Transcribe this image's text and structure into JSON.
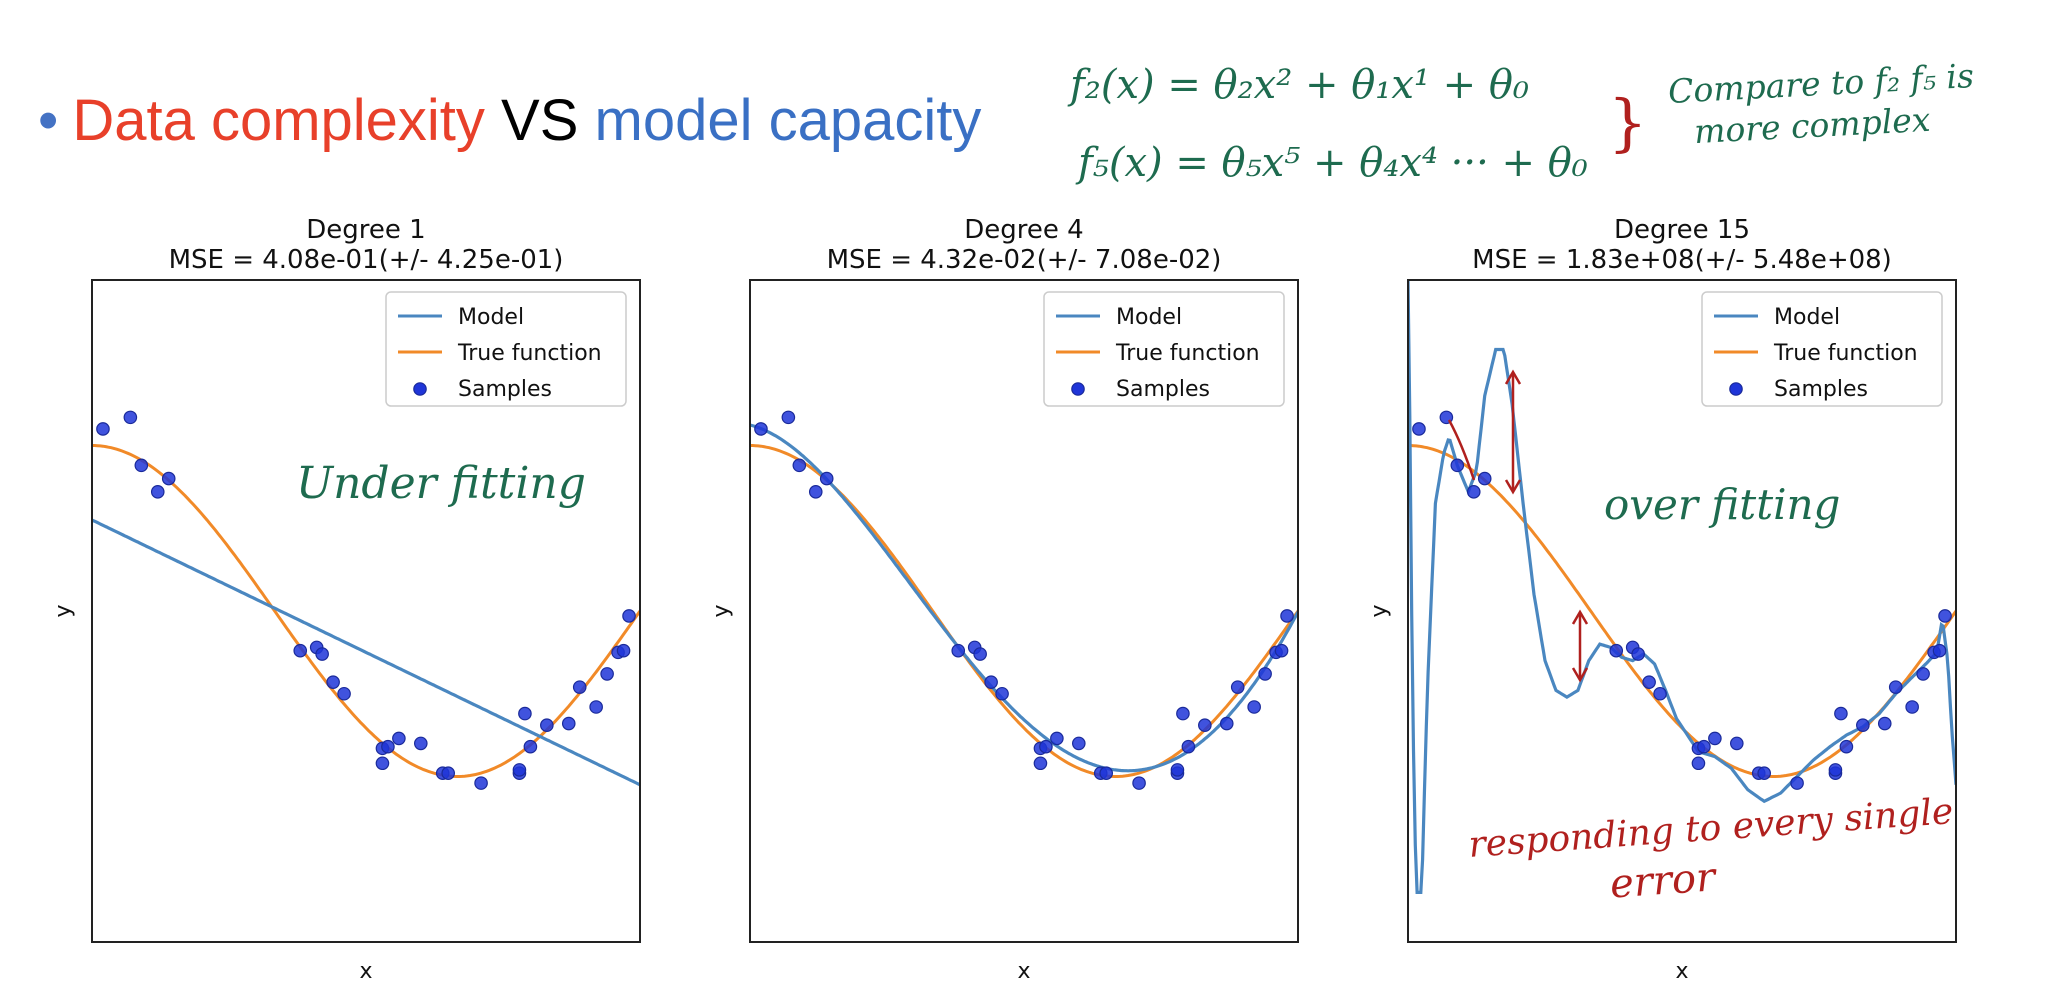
{
  "slide": {
    "bullet": "•",
    "heading_part1": "Data complexity",
    "heading_part2": " VS ",
    "heading_part3": "model capacity",
    "colors": {
      "red": "#e8402a",
      "blue": "#3a70c4",
      "ink_green": "#1e6b4f",
      "ink_red": "#b0201e"
    }
  },
  "annotations": {
    "eq1": "f₂(x) = θ₂x² + θ₁x¹ + θ₀",
    "eq2": "f₅(x) = θ₅x⁵ + θ₄x⁴ ··· + θ₀",
    "brace": "}",
    "note_line1": "Compare to f₂  f₅ is",
    "note_line2": "more complex",
    "underfitting": "Under fitting",
    "overfitting": "over fitting",
    "error_line1": "responding to every single",
    "error_line2": "error"
  },
  "chart_data": [
    {
      "type": "scatter+line",
      "title": "Degree 1",
      "subtitle": "MSE = 4.08e-01(+/- 4.25e-01)",
      "xlabel": "x",
      "ylabel": "y",
      "xlim": [
        0,
        1
      ],
      "ylim": [
        -2,
        2
      ],
      "legend": {
        "position": "top-right",
        "entries": [
          "Model",
          "True function",
          "Samples"
        ]
      },
      "colors": {
        "model": "#4a87c0",
        "true": "#f18a28",
        "samples": "#1f35d8"
      },
      "model_degree": 1
    },
    {
      "type": "scatter+line",
      "title": "Degree 4",
      "subtitle": "MSE = 4.32e-02(+/- 7.08e-02)",
      "xlabel": "x",
      "ylabel": "y",
      "xlim": [
        0,
        1
      ],
      "ylim": [
        -2,
        2
      ],
      "legend": {
        "position": "top-right",
        "entries": [
          "Model",
          "True function",
          "Samples"
        ]
      },
      "colors": {
        "model": "#4a87c0",
        "true": "#f18a28",
        "samples": "#1f35d8"
      },
      "model_degree": 4
    },
    {
      "type": "scatter+line",
      "title": "Degree 15",
      "subtitle": "MSE = 1.83e+08(+/- 5.48e+08)",
      "xlabel": "x",
      "ylabel": "y",
      "xlim": [
        0,
        1
      ],
      "ylim": [
        -2,
        2
      ],
      "legend": {
        "position": "top-right",
        "entries": [
          "Model",
          "True function",
          "Samples"
        ]
      },
      "colors": {
        "model": "#4a87c0",
        "true": "#f18a28",
        "samples": "#1f35d8"
      },
      "model_degree": 15
    }
  ],
  "shared_series": {
    "samples_x": [
      0.02,
      0.07,
      0.09,
      0.12,
      0.14,
      0.38,
      0.41,
      0.42,
      0.44,
      0.46,
      0.53,
      0.53,
      0.54,
      0.56,
      0.6,
      0.64,
      0.65,
      0.71,
      0.78,
      0.78,
      0.79,
      0.8,
      0.83,
      0.87,
      0.89,
      0.92,
      0.94,
      0.96,
      0.97,
      0.98
    ],
    "samples_y": [
      1.1,
      1.17,
      0.88,
      0.72,
      0.8,
      -0.24,
      -0.22,
      -0.26,
      -0.43,
      -0.5,
      -0.83,
      -0.92,
      -0.82,
      -0.77,
      -0.8,
      -0.98,
      -0.98,
      -1.04,
      -0.98,
      -0.96,
      -0.62,
      -0.82,
      -0.69,
      -0.68,
      -0.46,
      -0.58,
      -0.38,
      -0.25,
      -0.24,
      -0.03
    ],
    "true_function": "cos(1.5*pi*x)",
    "model_degree1": {
      "intercept": 0.55,
      "slope": -1.6
    },
    "model_degree15_x": [
      0.0,
      0.003,
      0.008,
      0.015,
      0.025,
      0.035,
      0.05,
      0.065,
      0.075,
      0.09,
      0.11,
      0.125,
      0.14,
      0.16,
      0.175,
      0.19,
      0.21,
      0.23,
      0.25,
      0.27,
      0.29,
      0.31,
      0.33,
      0.35,
      0.37,
      0.39,
      0.41,
      0.43,
      0.45,
      0.47,
      0.49,
      0.51,
      0.53,
      0.56,
      0.59,
      0.62,
      0.65,
      0.68,
      0.71,
      0.74,
      0.77,
      0.8,
      0.83,
      0.86,
      0.89,
      0.92,
      0.945,
      0.965,
      0.975,
      0.985,
      0.992,
      1.0
    ],
    "model_degree15_y": [
      2.0,
      1.3,
      -0.5,
      -1.7,
      -1.7,
      -0.5,
      0.65,
      0.95,
      1.05,
      0.88,
      0.72,
      0.85,
      1.3,
      1.58,
      1.58,
      1.25,
      0.65,
      0.1,
      -0.3,
      -0.48,
      -0.52,
      -0.48,
      -0.3,
      -0.2,
      -0.22,
      -0.28,
      -0.3,
      -0.26,
      -0.32,
      -0.48,
      -0.65,
      -0.75,
      -0.85,
      -0.88,
      -0.95,
      -1.08,
      -1.15,
      -1.1,
      -1.0,
      -0.9,
      -0.82,
      -0.75,
      -0.7,
      -0.62,
      -0.5,
      -0.4,
      -0.32,
      -0.25,
      -0.05,
      -0.3,
      -0.7,
      -1.05
    ]
  }
}
